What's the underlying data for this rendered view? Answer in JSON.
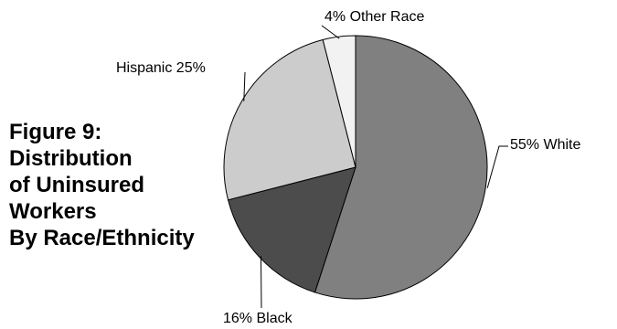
{
  "title_lines": [
    "Figure 9:",
    "Distribution",
    "of Uninsured",
    "Workers",
    "By Race/Ethnicity"
  ],
  "chart_data": {
    "type": "pie",
    "title": "Figure 9: Distribution of Uninsured Workers By Race/Ethnicity",
    "slices": [
      {
        "label": "White",
        "value": 55,
        "value_text": "55%",
        "color": "#808080",
        "display": "55%  White"
      },
      {
        "label": "Black",
        "value": 16,
        "value_text": "16%",
        "color": "#4c4c4c",
        "display": "16%  Black"
      },
      {
        "label": "Hispanic",
        "value": 25,
        "value_text": "25%",
        "color": "#cccccc",
        "display": "Hispanic  25%"
      },
      {
        "label": "Other Race",
        "value": 4,
        "value_text": "4%",
        "color": "#f2f2f2",
        "display": "4%  Other Race"
      }
    ],
    "start_angle": "12 o'clock",
    "direction": "clockwise",
    "stroke_color": "#000000",
    "legend": "none"
  }
}
